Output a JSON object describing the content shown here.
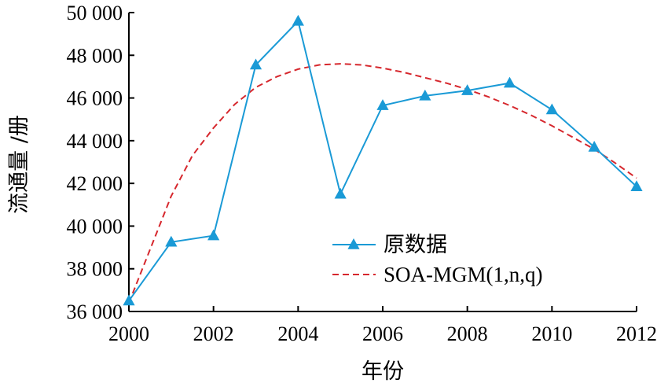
{
  "chart_data": {
    "type": "line",
    "title": "",
    "xlabel": "年份",
    "ylabel": "流通量 /册",
    "xlim": [
      2000,
      2012
    ],
    "ylim": [
      36000,
      50000
    ],
    "x_ticks": [
      2000,
      2002,
      2004,
      2006,
      2008,
      2010,
      2012
    ],
    "y_ticks": [
      36000,
      38000,
      40000,
      42000,
      44000,
      46000,
      48000,
      50000
    ],
    "y_tick_labels": [
      "36 000",
      "38 000",
      "40 000",
      "42 000",
      "44 000",
      "46 000",
      "48 000",
      "50 000"
    ],
    "grid": false,
    "legend_position": "center-right",
    "colors": {
      "original": "#1a9ad6",
      "model": "#d6272d",
      "axis": "#000000"
    },
    "series": [
      {
        "name": "原数据",
        "style": "solid-triangle-markers",
        "x": [
          2000,
          2001,
          2002,
          2003,
          2004,
          2005,
          2006,
          2007,
          2008,
          2009,
          2010,
          2011,
          2012
        ],
        "values": [
          36500,
          39250,
          39550,
          47550,
          49600,
          41500,
          45650,
          46100,
          46350,
          46700,
          45450,
          43700,
          41850
        ]
      },
      {
        "name": "SOA-MGM(1,n,q)",
        "style": "dashed",
        "x": [
          2000,
          2000.5,
          2001,
          2001.5,
          2002,
          2002.5,
          2003,
          2003.5,
          2004,
          2004.5,
          2005,
          2005.5,
          2006,
          2006.5,
          2007,
          2007.5,
          2008,
          2008.5,
          2009,
          2009.5,
          2010,
          2010.5,
          2011,
          2011.5,
          2012
        ],
        "values": [
          36400,
          38900,
          41400,
          43300,
          44600,
          45700,
          46500,
          47000,
          47350,
          47550,
          47600,
          47550,
          47400,
          47200,
          46950,
          46700,
          46400,
          46050,
          45650,
          45200,
          44700,
          44150,
          43600,
          42950,
          42250
        ]
      }
    ]
  }
}
